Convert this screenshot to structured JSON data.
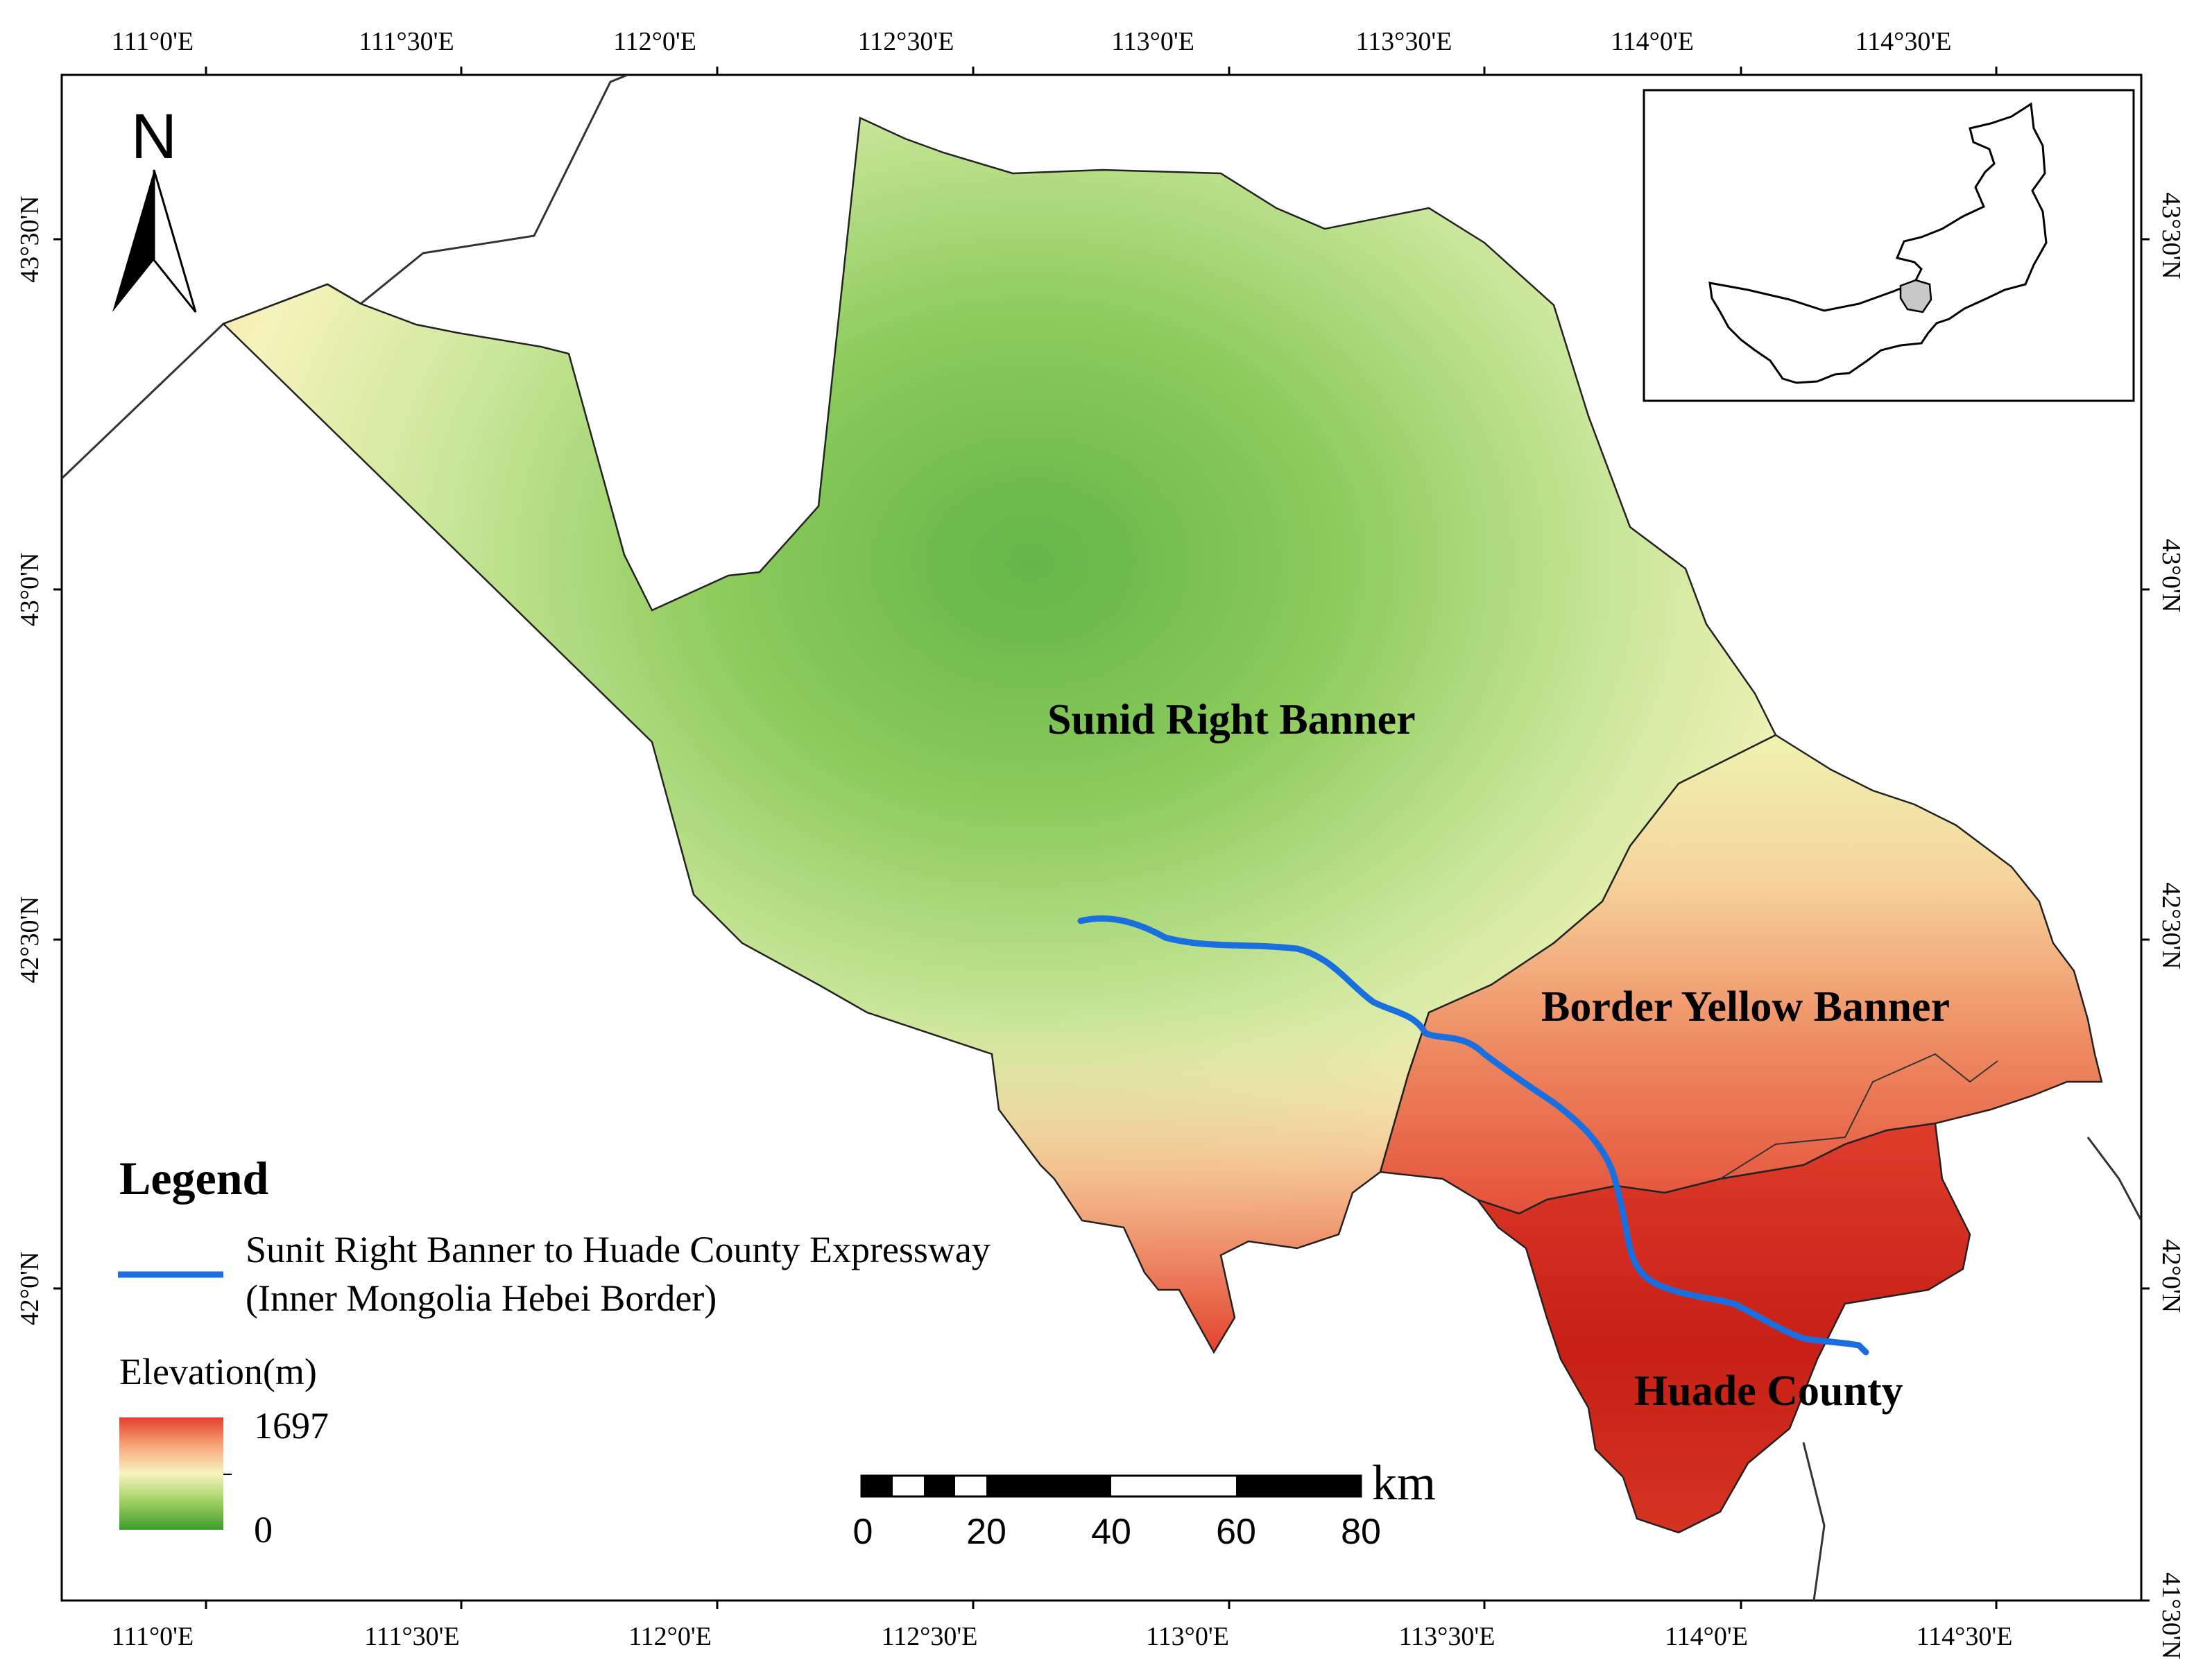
{
  "map": {
    "top_ticks": [
      "111°0'E",
      "111°30'E",
      "112°0'E",
      "112°30'E",
      "113°0'E",
      "113°30'E",
      "114°0'E",
      "114°30'E"
    ],
    "bottom_ticks": [
      "111°0'E",
      "111°30'E",
      "112°0'E",
      "112°30'E",
      "113°0'E",
      "113°30'E",
      "114°0'E",
      "114°30'E"
    ],
    "left_ticks": [
      "43°30'N",
      "43°0'N",
      "42°30'N",
      "42°0'N"
    ],
    "right_ticks": [
      "43°30'N",
      "43°0'N",
      "42°30'N",
      "42°0'N",
      "41°30'N"
    ],
    "regions": {
      "sunid": "Sunid Right Banner",
      "border_yellow": "Border Yellow Banner",
      "huade": "Huade County"
    },
    "north_label": "N"
  },
  "legend": {
    "title": "Legend",
    "expressway_line1": "Sunit Right Banner to Huade County Expressway",
    "expressway_line2": "(Inner Mongolia Hebei Border)",
    "expressway_color": "#1a6fe0",
    "elevation_title": "Elevation(m)",
    "elevation_max": "1697",
    "elevation_min": "0",
    "ramp_colors": [
      "#e3402a",
      "#f7a57a",
      "#f7f5c0",
      "#9ed060",
      "#3a9e2c"
    ]
  },
  "scale_bar": {
    "labels": [
      "0",
      "20",
      "40",
      "60",
      "80"
    ],
    "unit": "km"
  }
}
